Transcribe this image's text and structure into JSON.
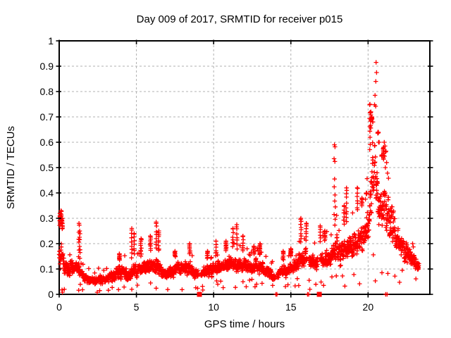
{
  "window": {
    "title": "Day 009 of 2017, SRMTID for receiver p015"
  },
  "colors": {
    "background": "#ffffff",
    "axis": "#000000",
    "grid": "#b0b0b0",
    "data": "#ff0000"
  },
  "chart_data": {
    "type": "scatter",
    "title": "Day 009 of 2017, SRMTID for receiver p015",
    "xlabel": "GPS time / hours",
    "ylabel": "SRMTID / TECUs",
    "xlim": [
      0,
      24
    ],
    "ylim": [
      0,
      1
    ],
    "xticks": [
      {
        "v": 0,
        "label": "0"
      },
      {
        "v": 5,
        "label": "5"
      },
      {
        "v": 10,
        "label": "10"
      },
      {
        "v": 15,
        "label": "15"
      },
      {
        "v": 20,
        "label": "20"
      }
    ],
    "yticks": [
      {
        "v": 0.0,
        "label": "0"
      },
      {
        "v": 0.1,
        "label": "0.1"
      },
      {
        "v": 0.2,
        "label": "0.2"
      },
      {
        "v": 0.3,
        "label": "0.3"
      },
      {
        "v": 0.4,
        "label": "0.4"
      },
      {
        "v": 0.5,
        "label": "0.5"
      },
      {
        "v": 0.6,
        "label": "0.6"
      },
      {
        "v": 0.7,
        "label": "0.7"
      },
      {
        "v": 0.8,
        "label": "0.8"
      },
      {
        "v": 0.9,
        "label": "0.9"
      },
      {
        "v": 1.0,
        "label": "1"
      }
    ],
    "grid": {
      "show": true,
      "color": "#b0b0b0",
      "dash": "3 3",
      "legend": "none"
    },
    "marker": {
      "shape": "plus",
      "color": "#ff0000",
      "size": 6.4
    },
    "series_name": "SRMTID",
    "summary": {
      "baseline_tecus": "0.05-0.15",
      "quiet_hours": "2-5",
      "spike_1": {
        "hour": 17.85,
        "max": 0.59
      },
      "main_peak": {
        "hour": 20.5,
        "max": 0.92
      },
      "secondary_peak": {
        "hour": 21.1,
        "max": 0.6
      },
      "data_end_hour": 23.3
    },
    "synthesis": {
      "seed": 42,
      "sample_step": 0.01,
      "x_end": 23.3,
      "envelope": [
        [
          0.0,
          0.06,
          0.26
        ],
        [
          0.15,
          0.06,
          0.28
        ],
        [
          0.3,
          0.05,
          0.2
        ],
        [
          0.6,
          0.04,
          0.14
        ],
        [
          0.9,
          0.05,
          0.16
        ],
        [
          1.2,
          0.05,
          0.15
        ],
        [
          1.5,
          0.04,
          0.11
        ],
        [
          1.8,
          0.03,
          0.09
        ],
        [
          2.2,
          0.02,
          0.08
        ],
        [
          2.6,
          0.02,
          0.09
        ],
        [
          3.0,
          0.03,
          0.09
        ],
        [
          3.4,
          0.03,
          0.11
        ],
        [
          3.8,
          0.04,
          0.13
        ],
        [
          4.1,
          0.04,
          0.14
        ],
        [
          4.5,
          0.03,
          0.11
        ],
        [
          4.8,
          0.04,
          0.15
        ],
        [
          5.2,
          0.05,
          0.14
        ],
        [
          5.6,
          0.05,
          0.16
        ],
        [
          6.0,
          0.06,
          0.17
        ],
        [
          6.4,
          0.06,
          0.17
        ],
        [
          6.8,
          0.04,
          0.12
        ],
        [
          7.2,
          0.04,
          0.13
        ],
        [
          7.6,
          0.05,
          0.15
        ],
        [
          8.0,
          0.05,
          0.15
        ],
        [
          8.4,
          0.05,
          0.16
        ],
        [
          8.8,
          0.04,
          0.12
        ],
        [
          9.2,
          0.04,
          0.12
        ],
        [
          9.6,
          0.05,
          0.14
        ],
        [
          10.0,
          0.05,
          0.14
        ],
        [
          10.4,
          0.06,
          0.15
        ],
        [
          10.8,
          0.06,
          0.17
        ],
        [
          11.2,
          0.07,
          0.18
        ],
        [
          11.6,
          0.06,
          0.17
        ],
        [
          12.0,
          0.06,
          0.16
        ],
        [
          12.4,
          0.06,
          0.15
        ],
        [
          12.8,
          0.06,
          0.16
        ],
        [
          13.2,
          0.05,
          0.15
        ],
        [
          13.6,
          0.04,
          0.12
        ],
        [
          14.0,
          0.04,
          0.11
        ],
        [
          14.4,
          0.05,
          0.13
        ],
        [
          14.8,
          0.05,
          0.14
        ],
        [
          15.2,
          0.06,
          0.16
        ],
        [
          15.6,
          0.07,
          0.2
        ],
        [
          16.0,
          0.07,
          0.21
        ],
        [
          16.4,
          0.06,
          0.18
        ],
        [
          16.8,
          0.07,
          0.2
        ],
        [
          17.2,
          0.07,
          0.21
        ],
        [
          17.6,
          0.08,
          0.22
        ],
        [
          17.9,
          0.1,
          0.28
        ],
        [
          18.2,
          0.08,
          0.24
        ],
        [
          18.6,
          0.09,
          0.28
        ],
        [
          19.0,
          0.1,
          0.3
        ],
        [
          19.4,
          0.11,
          0.33
        ],
        [
          19.8,
          0.12,
          0.36
        ],
        [
          20.05,
          0.14,
          0.45
        ],
        [
          20.2,
          0.16,
          0.68
        ],
        [
          20.4,
          0.18,
          0.72
        ],
        [
          20.6,
          0.19,
          0.66
        ],
        [
          20.8,
          0.17,
          0.56
        ],
        [
          21.05,
          0.16,
          0.52
        ],
        [
          21.3,
          0.15,
          0.47
        ],
        [
          21.6,
          0.13,
          0.4
        ],
        [
          21.9,
          0.12,
          0.33
        ],
        [
          22.2,
          0.1,
          0.28
        ],
        [
          22.5,
          0.09,
          0.24
        ],
        [
          22.8,
          0.08,
          0.2
        ],
        [
          23.1,
          0.07,
          0.17
        ],
        [
          23.3,
          0.05,
          0.14
        ]
      ],
      "spikes": [
        [
          0.05,
          0.32
        ],
        [
          0.12,
          0.33
        ],
        [
          0.2,
          0.3
        ],
        [
          1.28,
          0.28
        ],
        [
          1.33,
          0.25
        ],
        [
          3.9,
          0.16
        ],
        [
          4.7,
          0.26
        ],
        [
          4.85,
          0.24
        ],
        [
          5.3,
          0.22
        ],
        [
          5.9,
          0.23
        ],
        [
          6.28,
          0.285
        ],
        [
          6.45,
          0.25
        ],
        [
          7.5,
          0.17
        ],
        [
          8.45,
          0.2
        ],
        [
          9.6,
          0.17
        ],
        [
          10.15,
          0.21
        ],
        [
          10.8,
          0.21
        ],
        [
          11.25,
          0.26
        ],
        [
          11.5,
          0.275
        ],
        [
          11.9,
          0.23
        ],
        [
          12.6,
          0.19
        ],
        [
          13.0,
          0.2
        ],
        [
          14.5,
          0.17
        ],
        [
          15.0,
          0.18
        ],
        [
          15.65,
          0.3
        ],
        [
          16.0,
          0.28
        ],
        [
          16.9,
          0.27
        ],
        [
          17.2,
          0.25
        ],
        [
          18.45,
          0.35
        ],
        [
          18.6,
          0.42
        ],
        [
          19.3,
          0.42
        ],
        [
          19.6,
          0.38
        ],
        [
          19.9,
          0.4
        ],
        [
          20.12,
          0.75
        ],
        [
          20.18,
          0.72
        ],
        [
          20.25,
          0.7
        ],
        [
          20.3,
          0.68
        ],
        [
          20.65,
          0.64
        ],
        [
          20.7,
          0.6
        ],
        [
          20.9,
          0.55
        ],
        [
          21.0,
          0.58
        ]
      ],
      "high_points": [
        [
          20.52,
          0.915
        ],
        [
          20.55,
          0.875
        ],
        [
          20.5,
          0.84
        ],
        [
          20.45,
          0.785
        ],
        [
          20.42,
          0.748
        ],
        [
          20.49,
          0.742
        ],
        [
          21.05,
          0.6
        ],
        [
          21.1,
          0.585
        ],
        [
          21.16,
          0.565
        ],
        [
          21.06,
          0.545
        ],
        [
          21.2,
          0.52
        ],
        [
          21.12,
          0.5
        ],
        [
          21.26,
          0.478
        ],
        [
          21.32,
          0.458
        ],
        [
          17.82,
          0.59
        ],
        [
          17.86,
          0.582
        ],
        [
          17.8,
          0.535
        ],
        [
          17.85,
          0.524
        ],
        [
          17.83,
          0.455
        ],
        [
          17.81,
          0.424
        ],
        [
          17.86,
          0.392
        ],
        [
          17.84,
          0.368
        ],
        [
          17.88,
          0.345
        ],
        [
          17.8,
          0.315
        ],
        [
          17.87,
          0.296
        ]
      ],
      "zero_plus_hours": [
        14.03,
        14.1,
        16.08,
        16.15,
        21.14,
        21.23
      ],
      "zero_square_hours": [
        9.08,
        16.84
      ],
      "gaps": [
        [
          9.0,
          9.17
        ],
        [
          13.97,
          14.12
        ],
        [
          16.03,
          16.17
        ],
        [
          16.74,
          16.93
        ]
      ]
    }
  }
}
